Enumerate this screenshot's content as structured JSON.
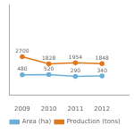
{
  "chart_data": {
    "type": "line",
    "x": [
      2009,
      2010,
      2011,
      2012
    ],
    "series": [
      {
        "name": "Production (tons)",
        "color": "#e07820",
        "values": [
          2700,
          1828,
          1954,
          1848
        ],
        "marker": "circle"
      },
      {
        "name": "Area (ha)",
        "color": "#6baed6",
        "values": [
          480,
          520,
          290,
          340
        ],
        "marker": "circle"
      }
    ],
    "xlim": [
      2008.5,
      2013.0
    ],
    "xticks": [
      2009,
      2010,
      2011,
      2012
    ],
    "ylim": [
      -2000,
      9000
    ],
    "tick_labels": "x",
    "grid": false,
    "legend": "bottom",
    "data_labels": true
  }
}
